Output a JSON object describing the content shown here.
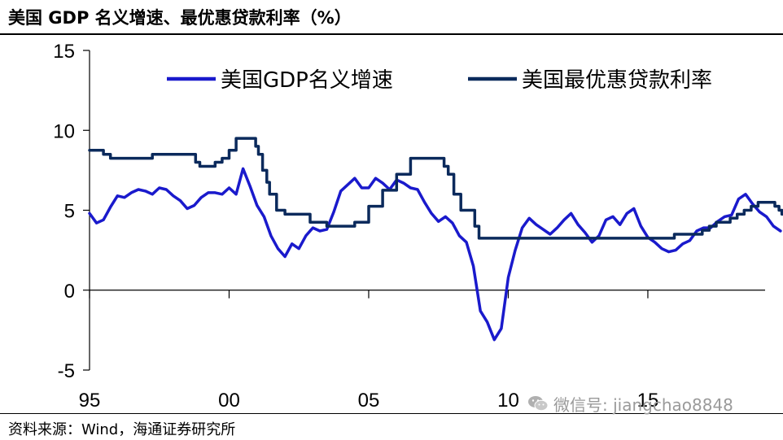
{
  "title": "美国 GDP 名义增速、最优惠贷款利率（%）",
  "source": "资料来源：Wind，海通证券研究所",
  "watermark": {
    "icon": "wechat-icon",
    "text": "微信号: jiangchao8848"
  },
  "colors": {
    "gdp": "#1a1acc",
    "prime": "#0b2a5c",
    "axis": "#000000"
  },
  "chart_data": {
    "type": "line",
    "title": "美国 GDP 名义增速、最优惠贷款利率（%）",
    "xlabel": "",
    "ylabel": "",
    "xlim": [
      1995,
      2019.2
    ],
    "ylim": [
      -5,
      15
    ],
    "x_ticks": [
      1995,
      2000,
      2005,
      2010,
      2015
    ],
    "x_tick_labels": [
      "95",
      "00",
      "05",
      "10",
      "15"
    ],
    "y_ticks": [
      -5,
      0,
      5,
      10,
      15
    ],
    "y_tick_labels": [
      "-5",
      "0",
      "5",
      "10",
      "15"
    ],
    "grid": false,
    "legend_position": "top",
    "series": [
      {
        "name": "美国GDP名义增速",
        "key": "gdp",
        "step": false,
        "points": [
          [
            1995.0,
            4.8
          ],
          [
            1995.25,
            4.2
          ],
          [
            1995.5,
            4.4
          ],
          [
            1995.75,
            5.2
          ],
          [
            1996.0,
            5.9
          ],
          [
            1996.25,
            5.8
          ],
          [
            1996.5,
            6.1
          ],
          [
            1996.75,
            6.3
          ],
          [
            1997.0,
            6.2
          ],
          [
            1997.25,
            6.0
          ],
          [
            1997.5,
            6.4
          ],
          [
            1997.75,
            6.3
          ],
          [
            1998.0,
            5.9
          ],
          [
            1998.25,
            5.6
          ],
          [
            1998.5,
            5.1
          ],
          [
            1998.75,
            5.3
          ],
          [
            1999.0,
            5.8
          ],
          [
            1999.25,
            6.1
          ],
          [
            1999.5,
            6.1
          ],
          [
            1999.75,
            6.0
          ],
          [
            2000.0,
            6.4
          ],
          [
            2000.25,
            6.0
          ],
          [
            2000.5,
            7.6
          ],
          [
            2000.75,
            6.5
          ],
          [
            2001.0,
            5.3
          ],
          [
            2001.25,
            4.6
          ],
          [
            2001.5,
            3.4
          ],
          [
            2001.75,
            2.6
          ],
          [
            2002.0,
            2.1
          ],
          [
            2002.25,
            2.9
          ],
          [
            2002.5,
            2.6
          ],
          [
            2002.75,
            3.4
          ],
          [
            2003.0,
            3.9
          ],
          [
            2003.25,
            3.7
          ],
          [
            2003.5,
            3.8
          ],
          [
            2003.75,
            4.9
          ],
          [
            2004.0,
            6.2
          ],
          [
            2004.25,
            6.6
          ],
          [
            2004.5,
            7.0
          ],
          [
            2004.75,
            6.4
          ],
          [
            2005.0,
            6.4
          ],
          [
            2005.25,
            7.0
          ],
          [
            2005.5,
            6.7
          ],
          [
            2005.75,
            6.3
          ],
          [
            2006.0,
            6.9
          ],
          [
            2006.25,
            6.7
          ],
          [
            2006.5,
            6.4
          ],
          [
            2006.75,
            6.3
          ],
          [
            2007.0,
            5.5
          ],
          [
            2007.25,
            4.8
          ],
          [
            2007.5,
            4.3
          ],
          [
            2007.75,
            4.6
          ],
          [
            2008.0,
            4.2
          ],
          [
            2008.25,
            3.4
          ],
          [
            2008.5,
            3.0
          ],
          [
            2008.75,
            1.5
          ],
          [
            2009.0,
            -1.3
          ],
          [
            2009.25,
            -2.0
          ],
          [
            2009.5,
            -3.1
          ],
          [
            2009.75,
            -2.4
          ],
          [
            2010.0,
            0.8
          ],
          [
            2010.25,
            2.5
          ],
          [
            2010.5,
            3.9
          ],
          [
            2010.75,
            4.5
          ],
          [
            2011.0,
            4.1
          ],
          [
            2011.25,
            3.8
          ],
          [
            2011.5,
            3.5
          ],
          [
            2011.75,
            3.9
          ],
          [
            2012.0,
            4.4
          ],
          [
            2012.25,
            4.8
          ],
          [
            2012.5,
            4.1
          ],
          [
            2012.75,
            3.6
          ],
          [
            2013.0,
            3.0
          ],
          [
            2013.25,
            3.4
          ],
          [
            2013.5,
            4.4
          ],
          [
            2013.75,
            4.6
          ],
          [
            2014.0,
            4.1
          ],
          [
            2014.25,
            4.8
          ],
          [
            2014.5,
            5.1
          ],
          [
            2014.75,
            4.0
          ],
          [
            2015.0,
            3.3
          ],
          [
            2015.25,
            3.0
          ],
          [
            2015.5,
            2.6
          ],
          [
            2015.75,
            2.4
          ],
          [
            2016.0,
            2.5
          ],
          [
            2016.25,
            2.9
          ],
          [
            2016.5,
            3.1
          ],
          [
            2016.75,
            3.7
          ],
          [
            2017.0,
            3.9
          ],
          [
            2017.25,
            3.9
          ],
          [
            2017.5,
            4.3
          ],
          [
            2017.75,
            4.6
          ],
          [
            2018.0,
            4.7
          ],
          [
            2018.25,
            5.7
          ],
          [
            2018.5,
            6.0
          ],
          [
            2018.75,
            5.4
          ],
          [
            2019.0,
            4.9
          ],
          [
            2019.25,
            4.6
          ],
          [
            2019.5,
            4.0
          ],
          [
            2019.75,
            3.7
          ]
        ]
      },
      {
        "name": "美国最优惠贷款利率",
        "key": "prime",
        "step": true,
        "points": [
          [
            1995.0,
            8.75
          ],
          [
            1995.5,
            8.5
          ],
          [
            1995.75,
            8.25
          ],
          [
            1997.25,
            8.5
          ],
          [
            1998.8,
            8.0
          ],
          [
            1998.95,
            7.75
          ],
          [
            1999.5,
            8.0
          ],
          [
            1999.75,
            8.25
          ],
          [
            2000.0,
            8.75
          ],
          [
            2000.25,
            9.5
          ],
          [
            2000.95,
            9.0
          ],
          [
            2001.05,
            8.5
          ],
          [
            2001.2,
            7.5
          ],
          [
            2001.35,
            6.75
          ],
          [
            2001.45,
            6.0
          ],
          [
            2001.7,
            5.0
          ],
          [
            2002.0,
            4.75
          ],
          [
            2002.9,
            4.25
          ],
          [
            2003.5,
            4.0
          ],
          [
            2004.5,
            4.25
          ],
          [
            2005.0,
            5.25
          ],
          [
            2005.5,
            6.25
          ],
          [
            2006.0,
            7.25
          ],
          [
            2006.5,
            8.25
          ],
          [
            2007.7,
            7.75
          ],
          [
            2007.85,
            7.25
          ],
          [
            2008.05,
            6.0
          ],
          [
            2008.3,
            5.0
          ],
          [
            2008.8,
            4.0
          ],
          [
            2008.95,
            3.25
          ],
          [
            2015.95,
            3.5
          ],
          [
            2016.95,
            3.75
          ],
          [
            2017.2,
            4.0
          ],
          [
            2017.45,
            4.25
          ],
          [
            2017.95,
            4.5
          ],
          [
            2018.2,
            4.75
          ],
          [
            2018.45,
            5.0
          ],
          [
            2018.7,
            5.25
          ],
          [
            2018.95,
            5.5
          ],
          [
            2019.55,
            5.25
          ],
          [
            2019.7,
            5.0
          ],
          [
            2019.8,
            4.75
          ],
          [
            2019.9,
            4.75
          ]
        ]
      }
    ]
  }
}
